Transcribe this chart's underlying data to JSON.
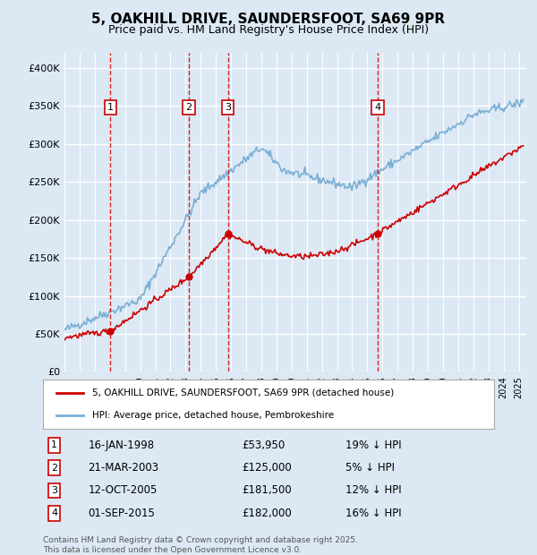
{
  "title_line1": "5, OAKHILL DRIVE, SAUNDERSFOOT, SA69 9PR",
  "title_line2": "Price paid vs. HM Land Registry's House Price Index (HPI)",
  "background_color": "#dce9f5",
  "ylabel_ticks": [
    "£0",
    "£50K",
    "£100K",
    "£150K",
    "£200K",
    "£250K",
    "£300K",
    "£350K",
    "£400K"
  ],
  "ytick_values": [
    0,
    50000,
    100000,
    150000,
    200000,
    250000,
    300000,
    350000,
    400000
  ],
  "ylim": [
    0,
    420000
  ],
  "xlim_start": 1995.0,
  "xlim_end": 2025.5,
  "sale_dates": [
    1998.04,
    2003.22,
    2005.79,
    2015.67
  ],
  "sale_prices": [
    53950,
    125000,
    181500,
    182000
  ],
  "sale_labels": [
    "1",
    "2",
    "3",
    "4"
  ],
  "vline_color": "#cc0000",
  "hpi_line_color": "#7bafd4",
  "price_line_color": "#cc0000",
  "legend_label_red": "5, OAKHILL DRIVE, SAUNDERSFOOT, SA69 9PR (detached house)",
  "legend_label_blue": "HPI: Average price, detached house, Pembrokeshire",
  "table_entries": [
    {
      "num": "1",
      "date": "16-JAN-1998",
      "price": "£53,950",
      "note": "19% ↓ HPI"
    },
    {
      "num": "2",
      "date": "21-MAR-2003",
      "price": "£125,000",
      "note": "5% ↓ HPI"
    },
    {
      "num": "3",
      "date": "12-OCT-2005",
      "price": "£181,500",
      "note": "12% ↓ HPI"
    },
    {
      "num": "4",
      "date": "01-SEP-2015",
      "price": "£182,000",
      "note": "16% ↓ HPI"
    }
  ],
  "footnote": "Contains HM Land Registry data © Crown copyright and database right 2025.\nThis data is licensed under the Open Government Licence v3.0."
}
